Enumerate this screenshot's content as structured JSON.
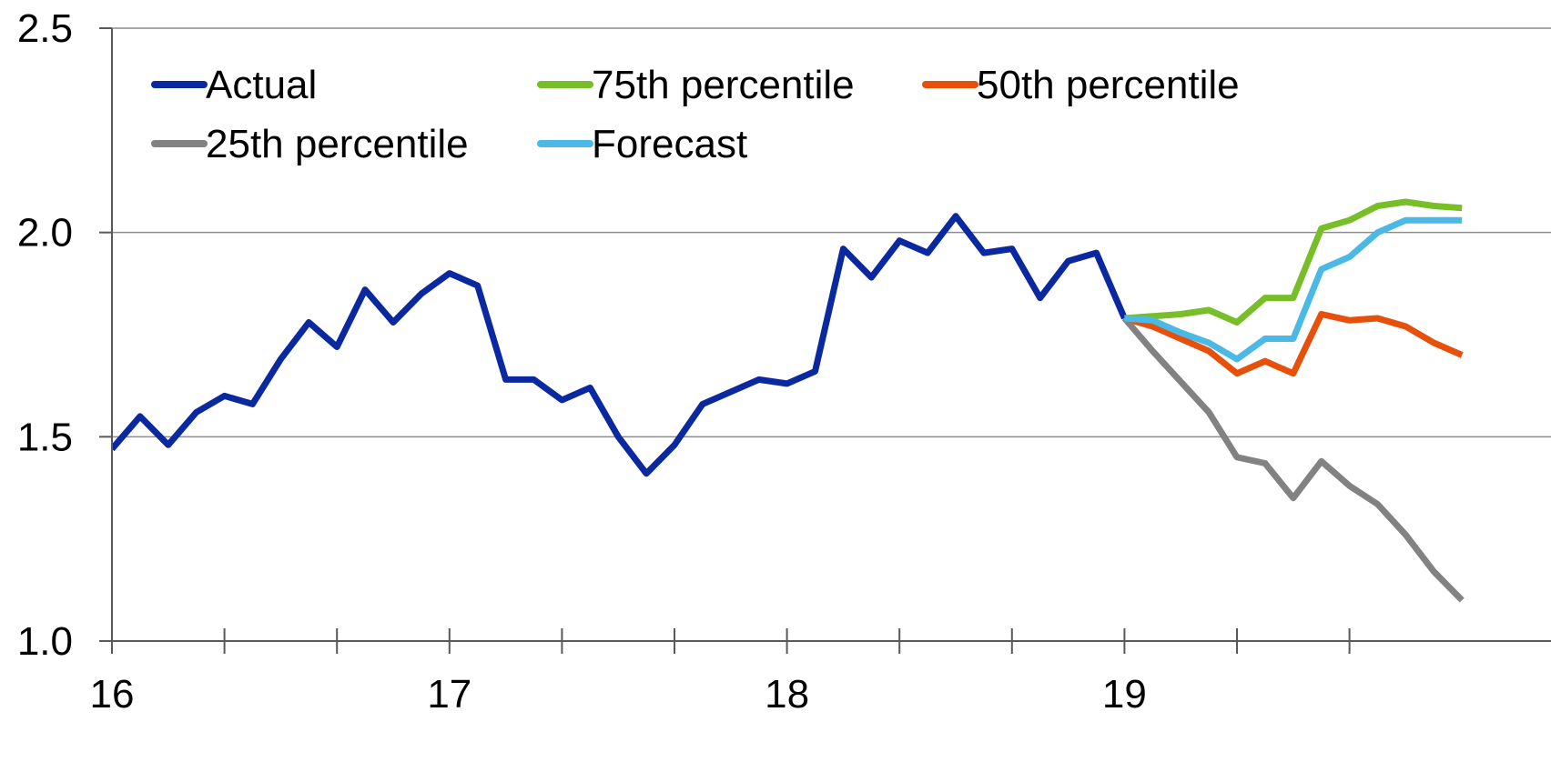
{
  "chart_data": {
    "type": "line",
    "title": "",
    "xlabel": "",
    "ylabel": "",
    "ylim": [
      1.0,
      2.5
    ],
    "xlim": [
      0,
      48
    ],
    "y_ticks": [
      "1.0",
      "1.5",
      "2.0",
      "2.5"
    ],
    "y_tick_values": [
      1.0,
      1.5,
      2.0,
      2.5
    ],
    "x_ticks": [
      {
        "label": "16",
        "value": 0
      },
      {
        "label": "17",
        "value": 12
      },
      {
        "label": "18",
        "value": 24
      },
      {
        "label": "19",
        "value": 36
      }
    ],
    "x_minor_ticks": [
      4,
      8,
      16,
      20,
      28,
      32,
      40,
      44
    ],
    "grid": true,
    "legend_placement": "top-left",
    "series": [
      {
        "name": "Actual",
        "color": "#0a28a0",
        "points": [
          [
            0,
            1.47
          ],
          [
            1,
            1.55
          ],
          [
            2,
            1.48
          ],
          [
            3,
            1.56
          ],
          [
            4,
            1.6
          ],
          [
            5,
            1.58
          ],
          [
            6,
            1.69
          ],
          [
            7,
            1.78
          ],
          [
            8,
            1.72
          ],
          [
            9,
            1.86
          ],
          [
            10,
            1.78
          ],
          [
            11,
            1.85
          ],
          [
            12,
            1.9
          ],
          [
            13,
            1.87
          ],
          [
            14,
            1.64
          ],
          [
            15,
            1.64
          ],
          [
            16,
            1.59
          ],
          [
            17,
            1.62
          ],
          [
            18,
            1.5
          ],
          [
            19,
            1.41
          ],
          [
            20,
            1.48
          ],
          [
            21,
            1.58
          ],
          [
            22,
            1.61
          ],
          [
            23,
            1.64
          ],
          [
            24,
            1.63
          ],
          [
            25,
            1.66
          ],
          [
            26,
            1.96
          ],
          [
            27,
            1.89
          ],
          [
            28,
            1.98
          ],
          [
            29,
            1.95
          ],
          [
            30,
            2.04
          ],
          [
            31,
            1.95
          ],
          [
            32,
            1.96
          ],
          [
            33,
            1.84
          ],
          [
            34,
            1.93
          ],
          [
            35,
            1.95
          ],
          [
            36,
            1.79
          ]
        ]
      },
      {
        "name": "75th percentile",
        "color": "#78be28",
        "points": [
          [
            36,
            1.79
          ],
          [
            37,
            1.795
          ],
          [
            38,
            1.8
          ],
          [
            39,
            1.81
          ],
          [
            40,
            1.78
          ],
          [
            41,
            1.84
          ],
          [
            42,
            1.84
          ],
          [
            43,
            2.01
          ],
          [
            44,
            2.03
          ],
          [
            45,
            2.065
          ],
          [
            46,
            2.075
          ],
          [
            47,
            2.065
          ],
          [
            48,
            2.06
          ]
        ]
      },
      {
        "name": "50th percentile",
        "color": "#e6500a",
        "points": [
          [
            36,
            1.79
          ],
          [
            37,
            1.77
          ],
          [
            38,
            1.74
          ],
          [
            39,
            1.71
          ],
          [
            40,
            1.655
          ],
          [
            41,
            1.685
          ],
          [
            42,
            1.655
          ],
          [
            43,
            1.8
          ],
          [
            44,
            1.785
          ],
          [
            45,
            1.79
          ],
          [
            46,
            1.77
          ],
          [
            47,
            1.73
          ],
          [
            48,
            1.7
          ]
        ]
      },
      {
        "name": "25th percentile",
        "color": "#828282",
        "points": [
          [
            36,
            1.79
          ],
          [
            37,
            1.71
          ],
          [
            38,
            1.635
          ],
          [
            39,
            1.56
          ],
          [
            40,
            1.45
          ],
          [
            41,
            1.435
          ],
          [
            42,
            1.35
          ],
          [
            43,
            1.44
          ],
          [
            44,
            1.38
          ],
          [
            45,
            1.335
          ],
          [
            46,
            1.26
          ],
          [
            47,
            1.17
          ],
          [
            48,
            1.1
          ]
        ]
      },
      {
        "name": "Forecast",
        "color": "#4bb9e6",
        "points": [
          [
            36,
            1.79
          ],
          [
            37,
            1.785
          ],
          [
            38,
            1.755
          ],
          [
            39,
            1.73
          ],
          [
            40,
            1.69
          ],
          [
            41,
            1.74
          ],
          [
            42,
            1.74
          ],
          [
            43,
            1.91
          ],
          [
            44,
            1.94
          ],
          [
            45,
            2.0
          ],
          [
            46,
            2.03
          ],
          [
            47,
            2.03
          ],
          [
            48,
            2.03
          ]
        ]
      }
    ],
    "legend_order": [
      "Actual",
      "75th percentile",
      "50th percentile",
      "25th percentile",
      "Forecast"
    ]
  }
}
